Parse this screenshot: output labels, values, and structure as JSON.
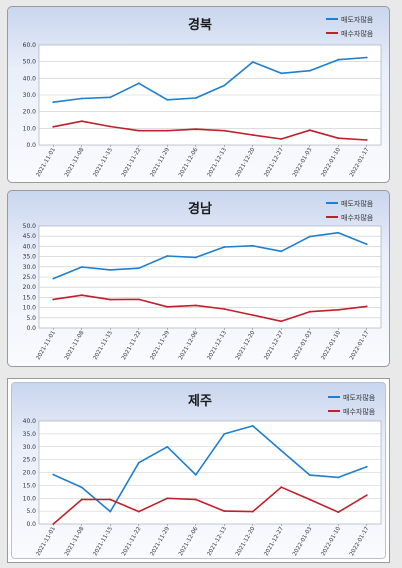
{
  "charts": [
    {
      "title": "경북",
      "legend": [
        "매도자많음",
        "매수자많음"
      ],
      "colors": [
        "#1f7fcc",
        "#c0202b"
      ],
      "x": [
        "2021-11-01",
        "2021-11-08",
        "2021-11-15",
        "2021-11-22",
        "2021-11-29",
        "2021-12-06",
        "2021-12-13",
        "2021-12-20",
        "2021-12-27",
        "2022-01-03",
        "2022-01-10",
        "2022-01-17"
      ],
      "y_ticks": [
        "60.0",
        "50.0",
        "40.0",
        "30.0",
        "20.0",
        "10.0",
        "0.0"
      ]
    },
    {
      "title": "경남",
      "legend": [
        "매도자많음",
        "매수자많음"
      ],
      "colors": [
        "#1f7fcc",
        "#c0202b"
      ],
      "x": [
        "2021-11-01",
        "2021-11-08",
        "2021-11-15",
        "2021-11-22",
        "2021-11-29",
        "2021-12-06",
        "2021-12-13",
        "2021-12-20",
        "2021-12-27",
        "2022-01-03",
        "2022-01-10",
        "2022-01-17"
      ],
      "y_ticks": [
        "50.0",
        "45.0",
        "40.0",
        "35.0",
        "30.0",
        "25.0",
        "20.0",
        "15.0",
        "10.0",
        "5.0",
        "0.0"
      ]
    },
    {
      "title": "제주",
      "legend": [
        "매도자많음",
        "매수자많음"
      ],
      "colors": [
        "#1f7fcc",
        "#c0202b"
      ],
      "x": [
        "2021-11-01",
        "2021-11-08",
        "2021-11-15",
        "2021-11-22",
        "2021-11-29",
        "2021-12-06",
        "2021-12-13",
        "2021-12-20",
        "2021-12-27",
        "2022-01-03",
        "2022-01-10",
        "2022-01-17"
      ],
      "y_ticks": [
        "40.0",
        "35.0",
        "30.0",
        "25.0",
        "20.0",
        "15.0",
        "10.0",
        "5.0",
        "0.0"
      ]
    }
  ],
  "chart_data": [
    {
      "type": "line",
      "title": "경북",
      "xlabel": "",
      "ylabel": "",
      "x": [
        "2021-11-01",
        "2021-11-08",
        "2021-11-15",
        "2021-11-22",
        "2021-11-29",
        "2021-12-06",
        "2021-12-13",
        "2021-12-20",
        "2021-12-27",
        "2022-01-03",
        "2022-01-10",
        "2022-01-17"
      ],
      "ylim": [
        0,
        60
      ],
      "grid": true,
      "legend": "top-right",
      "series": [
        {
          "name": "매도자많음",
          "values": [
            25.7,
            27.9,
            28.6,
            37.0,
            27.1,
            28.2,
            35.7,
            49.8,
            43.0,
            44.6,
            51.2,
            52.5
          ]
        },
        {
          "name": "매수자많음",
          "values": [
            10.9,
            14.3,
            11.1,
            8.6,
            8.6,
            9.5,
            8.6,
            6.0,
            3.6,
            8.9,
            4.1,
            3.0
          ]
        }
      ]
    },
    {
      "type": "line",
      "title": "경남",
      "xlabel": "",
      "ylabel": "",
      "x": [
        "2021-11-01",
        "2021-11-08",
        "2021-11-15",
        "2021-11-22",
        "2021-11-29",
        "2021-12-06",
        "2021-12-13",
        "2021-12-20",
        "2021-12-27",
        "2022-01-03",
        "2022-01-10",
        "2022-01-17"
      ],
      "ylim": [
        0,
        50
      ],
      "grid": true,
      "legend": "top-right",
      "series": [
        {
          "name": "매도자많음",
          "values": [
            24.2,
            29.9,
            28.5,
            29.3,
            35.3,
            34.6,
            39.7,
            40.3,
            37.6,
            44.8,
            46.7,
            41.1
          ]
        },
        {
          "name": "매수자많음",
          "values": [
            14.0,
            16.1,
            13.9,
            14.0,
            10.4,
            11.1,
            9.3,
            6.3,
            3.3,
            8.0,
            8.9,
            10.6
          ]
        }
      ]
    },
    {
      "type": "line",
      "title": "제주",
      "xlabel": "",
      "ylabel": "",
      "x": [
        "2021-11-01",
        "2021-11-08",
        "2021-11-15",
        "2021-11-22",
        "2021-11-29",
        "2021-12-06",
        "2021-12-13",
        "2021-12-20",
        "2021-12-27",
        "2022-01-03",
        "2022-01-10",
        "2022-01-17"
      ],
      "ylim": [
        0,
        40
      ],
      "grid": true,
      "legend": "top-right",
      "series": [
        {
          "name": "매도자많음",
          "values": [
            19.2,
            14.2,
            4.8,
            23.8,
            30.0,
            19.1,
            35.0,
            38.1,
            28.5,
            19.0,
            18.1,
            22.2
          ]
        },
        {
          "name": "매수자많음",
          "values": [
            0.0,
            9.5,
            9.5,
            4.8,
            10.0,
            9.5,
            5.0,
            4.8,
            14.3,
            9.5,
            4.6,
            11.2
          ]
        }
      ]
    }
  ]
}
